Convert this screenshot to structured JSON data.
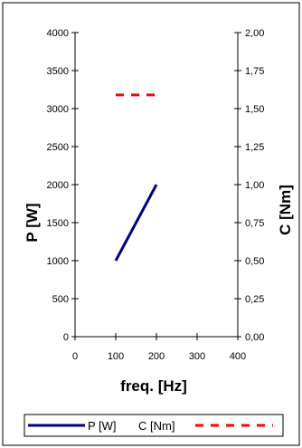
{
  "chart_data": {
    "type": "line",
    "xlabel": "freq. [Hz]",
    "ylabel_left": "P  [W]",
    "ylabel_right": "C  [Nm]",
    "x_ticks": [
      "0",
      "100",
      "200",
      "300",
      "400"
    ],
    "xlim": [
      0,
      400
    ],
    "y_left_ticks": [
      "0",
      "500",
      "1000",
      "1500",
      "2000",
      "2500",
      "3000",
      "3500",
      "4000"
    ],
    "ylim_left": [
      0,
      4000
    ],
    "y_right_ticks": [
      "0,00",
      "0,25",
      "0,50",
      "0,75",
      "1,00",
      "1,25",
      "1,50",
      "1,75",
      "2,00"
    ],
    "ylim_right": [
      0,
      2
    ],
    "grid": false,
    "legend_position": "bottom",
    "series": [
      {
        "name": "P [W]",
        "axis": "left",
        "color": "#000080",
        "style": "solid",
        "x": [
          100,
          200
        ],
        "y": [
          1000,
          2000
        ]
      },
      {
        "name": "C [Nm]",
        "axis": "right",
        "color": "#ff0000",
        "style": "dashed",
        "x": [
          100,
          200
        ],
        "y": [
          1.59,
          1.59
        ]
      }
    ]
  }
}
